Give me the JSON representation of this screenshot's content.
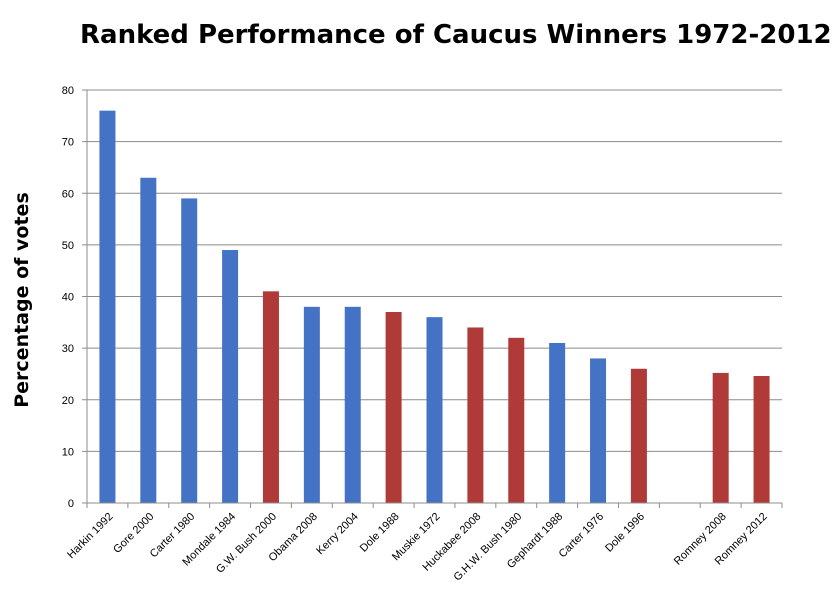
{
  "chart_data": {
    "type": "bar",
    "title": "Ranked Performance of Caucus Winners 1972-2012",
    "xlabel": "",
    "ylabel": "Percentage of votes",
    "ylim": [
      0,
      80
    ],
    "yticks": [
      0,
      10,
      20,
      30,
      40,
      50,
      60,
      70,
      80
    ],
    "grid": true,
    "legend": "none",
    "colors": {
      "democrat": "#4472C4",
      "republican": "#B03A38"
    },
    "categories": [
      "Harkin 1992",
      "Gore 2000",
      "Carter 1980",
      "Mondale 1984",
      "G.W. Bush 2000",
      "Obama 2008",
      "Kerry 2004",
      "Dole 1988",
      "Muskie 1972",
      "Huckabee 2008",
      "G.H.W. Bush 1980",
      "Gephardt 1988",
      "Carter 1976",
      "Dole 1996",
      "",
      "Romney 2008",
      "Romney 2012"
    ],
    "values": [
      76,
      63,
      59,
      49,
      41,
      38,
      38,
      37,
      36,
      34,
      32,
      31,
      28,
      26,
      null,
      25.2,
      24.6
    ],
    "party": [
      "democrat",
      "democrat",
      "democrat",
      "democrat",
      "republican",
      "democrat",
      "democrat",
      "republican",
      "democrat",
      "republican",
      "republican",
      "democrat",
      "democrat",
      "republican",
      "",
      "republican",
      "republican"
    ]
  }
}
